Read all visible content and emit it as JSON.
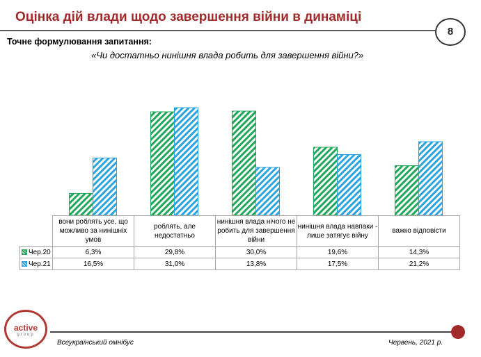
{
  "header": {
    "title": "Оцінка дій влади щодо завершення війни в динаміці",
    "page_number": "8"
  },
  "question": {
    "label": "Точне формулювання запитання:",
    "text": "«Чи достатньо нинішня влада робить для завершення війни?»"
  },
  "chart_data": {
    "type": "bar",
    "categories": [
      "вони роблять усе, що можливо за нинішніх умов",
      "роблять, але недостатньо",
      "нинішня влада нічого не робить для завершення війни",
      "нинішня влада навпаки - лише затягує війну",
      "важко відповісти"
    ],
    "series": [
      {
        "name": "Чер.20",
        "values": [
          6.3,
          29.8,
          30.0,
          19.6,
          14.3
        ],
        "labels": [
          "6,3%",
          "29,8%",
          "30,0%",
          "19,6%",
          "14,3%"
        ],
        "color": "#1fa85a"
      },
      {
        "name": "Чер.21",
        "values": [
          16.5,
          31.0,
          13.8,
          17.5,
          21.2
        ],
        "labels": [
          "16,5%",
          "31,0%",
          "13,8%",
          "17,5%",
          "21,2%"
        ],
        "color": "#2aa4e0"
      }
    ],
    "pattern": "diagonal-hatch",
    "ylim": [
      0,
      35
    ],
    "grid": false,
    "legend": "data-table"
  },
  "footer": {
    "logo_main": "active",
    "logo_sub": "group",
    "left_text": "Всеукраїнський омнібус",
    "right_text": "Червень, 2021 р."
  }
}
